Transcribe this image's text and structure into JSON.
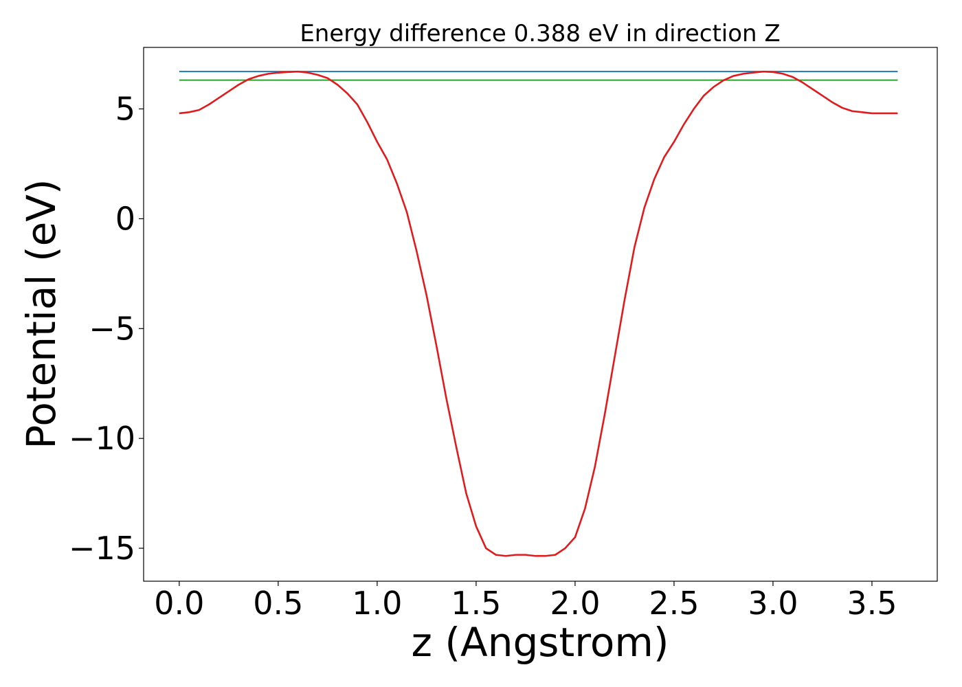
{
  "chart_data": {
    "type": "line",
    "title": "Energy difference 0.388 eV in direction Z",
    "xlabel": "z (Angstrom)",
    "ylabel": "Potential (eV)",
    "xlim": [
      -0.18,
      3.83
    ],
    "ylim": [
      -16.5,
      7.8
    ],
    "xticks": [
      0.0,
      0.5,
      1.0,
      1.5,
      2.0,
      2.5,
      3.0,
      3.5
    ],
    "xtick_labels": [
      "0.0",
      "0.5",
      "1.0",
      "1.5",
      "2.0",
      "2.5",
      "3.0",
      "3.5"
    ],
    "yticks": [
      5,
      0,
      -5,
      -10,
      -15
    ],
    "ytick_labels": [
      "5",
      "0",
      "−5",
      "−10",
      "−15"
    ],
    "grid": false,
    "colors": {
      "potential": "#e31a1c",
      "max_line": "#1f77b4",
      "min_max_line": "#2ca02c"
    },
    "series": [
      {
        "key": "potential",
        "x": [
          0.0,
          0.05,
          0.1,
          0.15,
          0.2,
          0.25,
          0.3,
          0.35,
          0.4,
          0.45,
          0.5,
          0.55,
          0.6,
          0.65,
          0.7,
          0.75,
          0.8,
          0.85,
          0.9,
          0.95,
          1.0,
          1.05,
          1.1,
          1.15,
          1.2,
          1.25,
          1.3,
          1.35,
          1.4,
          1.45,
          1.5,
          1.55,
          1.6,
          1.65,
          1.7,
          1.75,
          1.8,
          1.85,
          1.9,
          1.95,
          2.0,
          2.05,
          2.1,
          2.15,
          2.2,
          2.25,
          2.3,
          2.35,
          2.4,
          2.45,
          2.5,
          2.55,
          2.6,
          2.65,
          2.7,
          2.75,
          2.8,
          2.85,
          2.9,
          2.95,
          3.0,
          3.05,
          3.1,
          3.15,
          3.2,
          3.25,
          3.3,
          3.35,
          3.4,
          3.45,
          3.5,
          3.55,
          3.6,
          3.63
        ],
        "values": [
          4.8,
          4.85,
          4.95,
          5.2,
          5.5,
          5.8,
          6.1,
          6.35,
          6.5,
          6.6,
          6.65,
          6.68,
          6.7,
          6.65,
          6.55,
          6.4,
          6.1,
          5.7,
          5.2,
          4.4,
          3.5,
          2.7,
          1.6,
          0.3,
          -1.5,
          -3.5,
          -5.8,
          -8.2,
          -10.4,
          -12.5,
          -14.0,
          -15.0,
          -15.3,
          -15.35,
          -15.3,
          -15.3,
          -15.35,
          -15.35,
          -15.3,
          -15.0,
          -14.5,
          -13.2,
          -11.3,
          -8.9,
          -6.3,
          -3.7,
          -1.3,
          0.5,
          1.8,
          2.8,
          3.5,
          4.3,
          5.0,
          5.6,
          6.0,
          6.3,
          6.5,
          6.6,
          6.65,
          6.7,
          6.68,
          6.6,
          6.45,
          6.2,
          5.9,
          5.6,
          5.3,
          5.05,
          4.9,
          4.85,
          4.8,
          4.8,
          4.8,
          4.8
        ]
      },
      {
        "key": "max_line",
        "x": [
          0.0,
          3.63
        ],
        "values": [
          6.7,
          6.7
        ]
      },
      {
        "key": "min_max_line",
        "x": [
          0.0,
          3.63
        ],
        "values": [
          6.312,
          6.312
        ]
      }
    ]
  }
}
